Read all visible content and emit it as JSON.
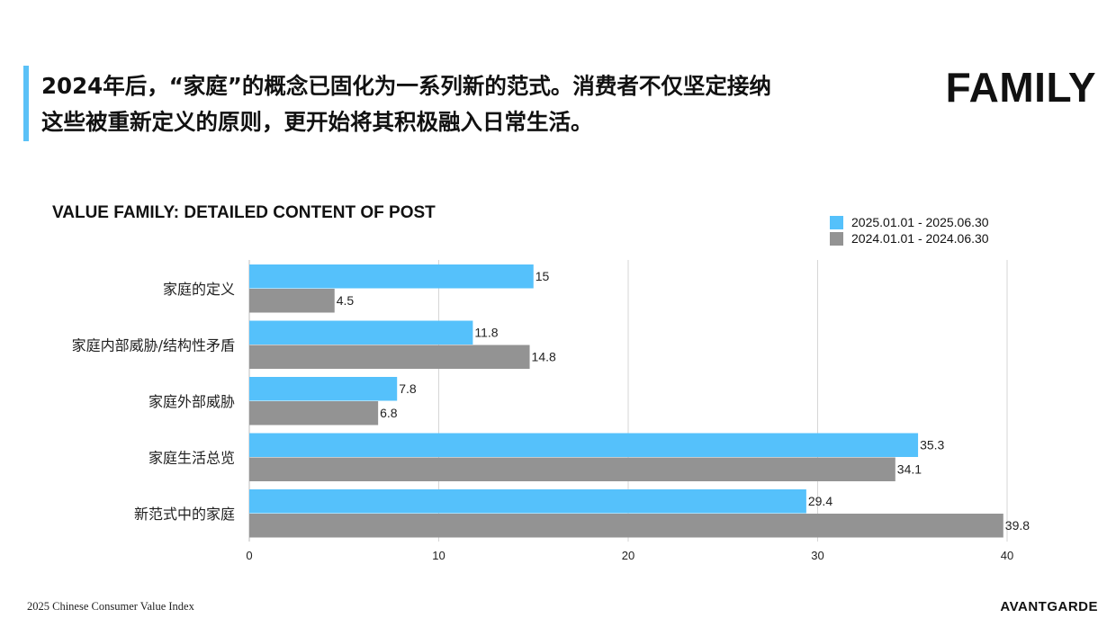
{
  "header": {
    "headline_line1": "2024年后，“家庭”的概念已固化为一系列新的范式。消费者不仅坚定接纳",
    "headline_line2": "这些被重新定义的原则，更开始将其积极融入日常生活。",
    "section_title": "FAMILY",
    "accent_color": "#5ac1f7"
  },
  "chart_data": {
    "type": "bar",
    "orientation": "horizontal",
    "title": "VALUE FAMILY: DETAILED CONTENT OF POST",
    "categories": [
      "家庭的定义",
      "家庭内部威胁/结构性矛盾",
      "家庭外部威胁",
      "家庭生活总览",
      "新范式中的家庭"
    ],
    "series": [
      {
        "name": "2025.01.01 - 2025.06.30",
        "color": "#55c1fb",
        "values": [
          15,
          11.8,
          7.8,
          35.3,
          29.4
        ]
      },
      {
        "name": "2024.01.01 - 2024.06.30",
        "color": "#939393",
        "values": [
          4.5,
          14.8,
          6.8,
          34.1,
          39.8
        ]
      }
    ],
    "xlim": [
      0,
      40
    ],
    "x_ticks": [
      0,
      10,
      20,
      30,
      40
    ],
    "grid": true,
    "legend_position": "top-right",
    "data_labels": true
  },
  "footer": {
    "left_text": "2025 Chinese Consumer Value Index",
    "brand": "AVANTGARDE"
  }
}
